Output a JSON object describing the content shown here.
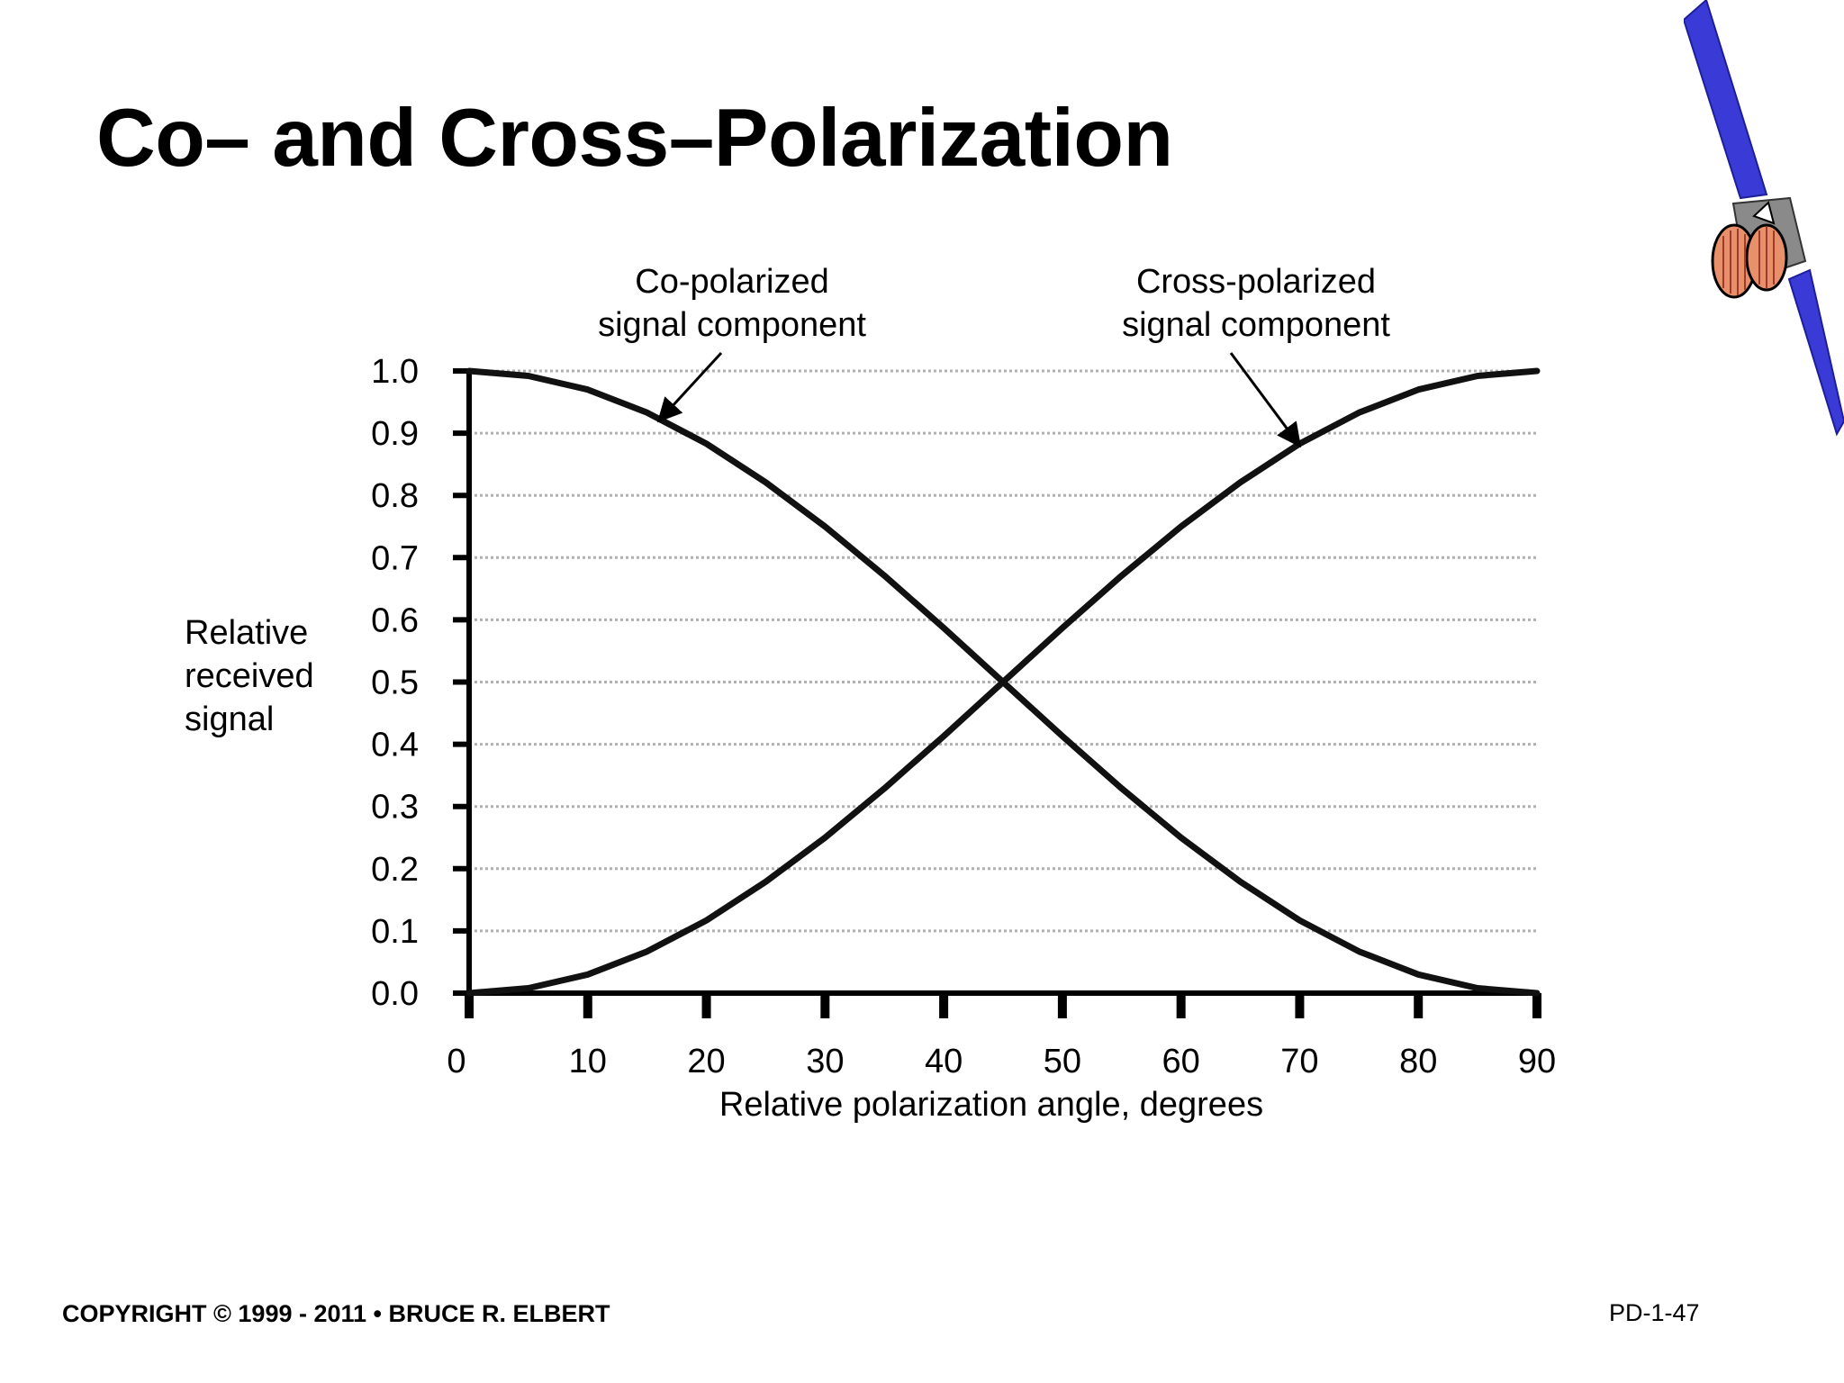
{
  "slide": {
    "title": "Co– and Cross–Polarization",
    "footer_copyright": "COPYRIGHT © 1999 - 2011 • BRUCE R. ELBERT",
    "page_number": "PD-1-47",
    "icon": "satellite-icon"
  },
  "chart_data": {
    "type": "line",
    "xlabel": "Relative polarization angle, degrees",
    "ylabel_lines": [
      "Relative",
      "received",
      "signal"
    ],
    "xlim": [
      0,
      90
    ],
    "ylim": [
      0,
      1
    ],
    "x_ticks": [
      "0",
      "10",
      "20",
      "30",
      "40",
      "50",
      "60",
      "70",
      "80",
      "90"
    ],
    "y_ticks": [
      "1.0",
      "0.9",
      "0.8",
      "0.7",
      "0.6",
      "0.5",
      "0.4",
      "0.3",
      "0.2",
      "0.1",
      "0.0"
    ],
    "grid": true,
    "annotations": [
      {
        "lines": [
          "Co-polarized",
          "signal component"
        ],
        "points_to_x": 16,
        "points_to_y": 0.92
      },
      {
        "lines": [
          "Cross-polarized",
          "signal component"
        ],
        "points_to_x": 70,
        "points_to_y": 0.88
      }
    ],
    "series": [
      {
        "x": [
          0,
          5,
          10,
          15,
          20,
          25,
          30,
          35,
          40,
          45,
          50,
          55,
          60,
          65,
          70,
          75,
          80,
          85,
          90
        ],
        "values": [
          1.0,
          0.992,
          0.97,
          0.933,
          0.883,
          0.821,
          0.75,
          0.671,
          0.587,
          0.5,
          0.413,
          0.329,
          0.25,
          0.179,
          0.117,
          0.067,
          0.03,
          0.008,
          0.0
        ]
      },
      {
        "x": [
          0,
          5,
          10,
          15,
          20,
          25,
          30,
          35,
          40,
          45,
          50,
          55,
          60,
          65,
          70,
          75,
          80,
          85,
          90
        ],
        "values": [
          0.0,
          0.008,
          0.03,
          0.067,
          0.117,
          0.179,
          0.25,
          0.329,
          0.413,
          0.5,
          0.587,
          0.671,
          0.75,
          0.821,
          0.883,
          0.933,
          0.97,
          0.992,
          1.0
        ]
      }
    ]
  }
}
